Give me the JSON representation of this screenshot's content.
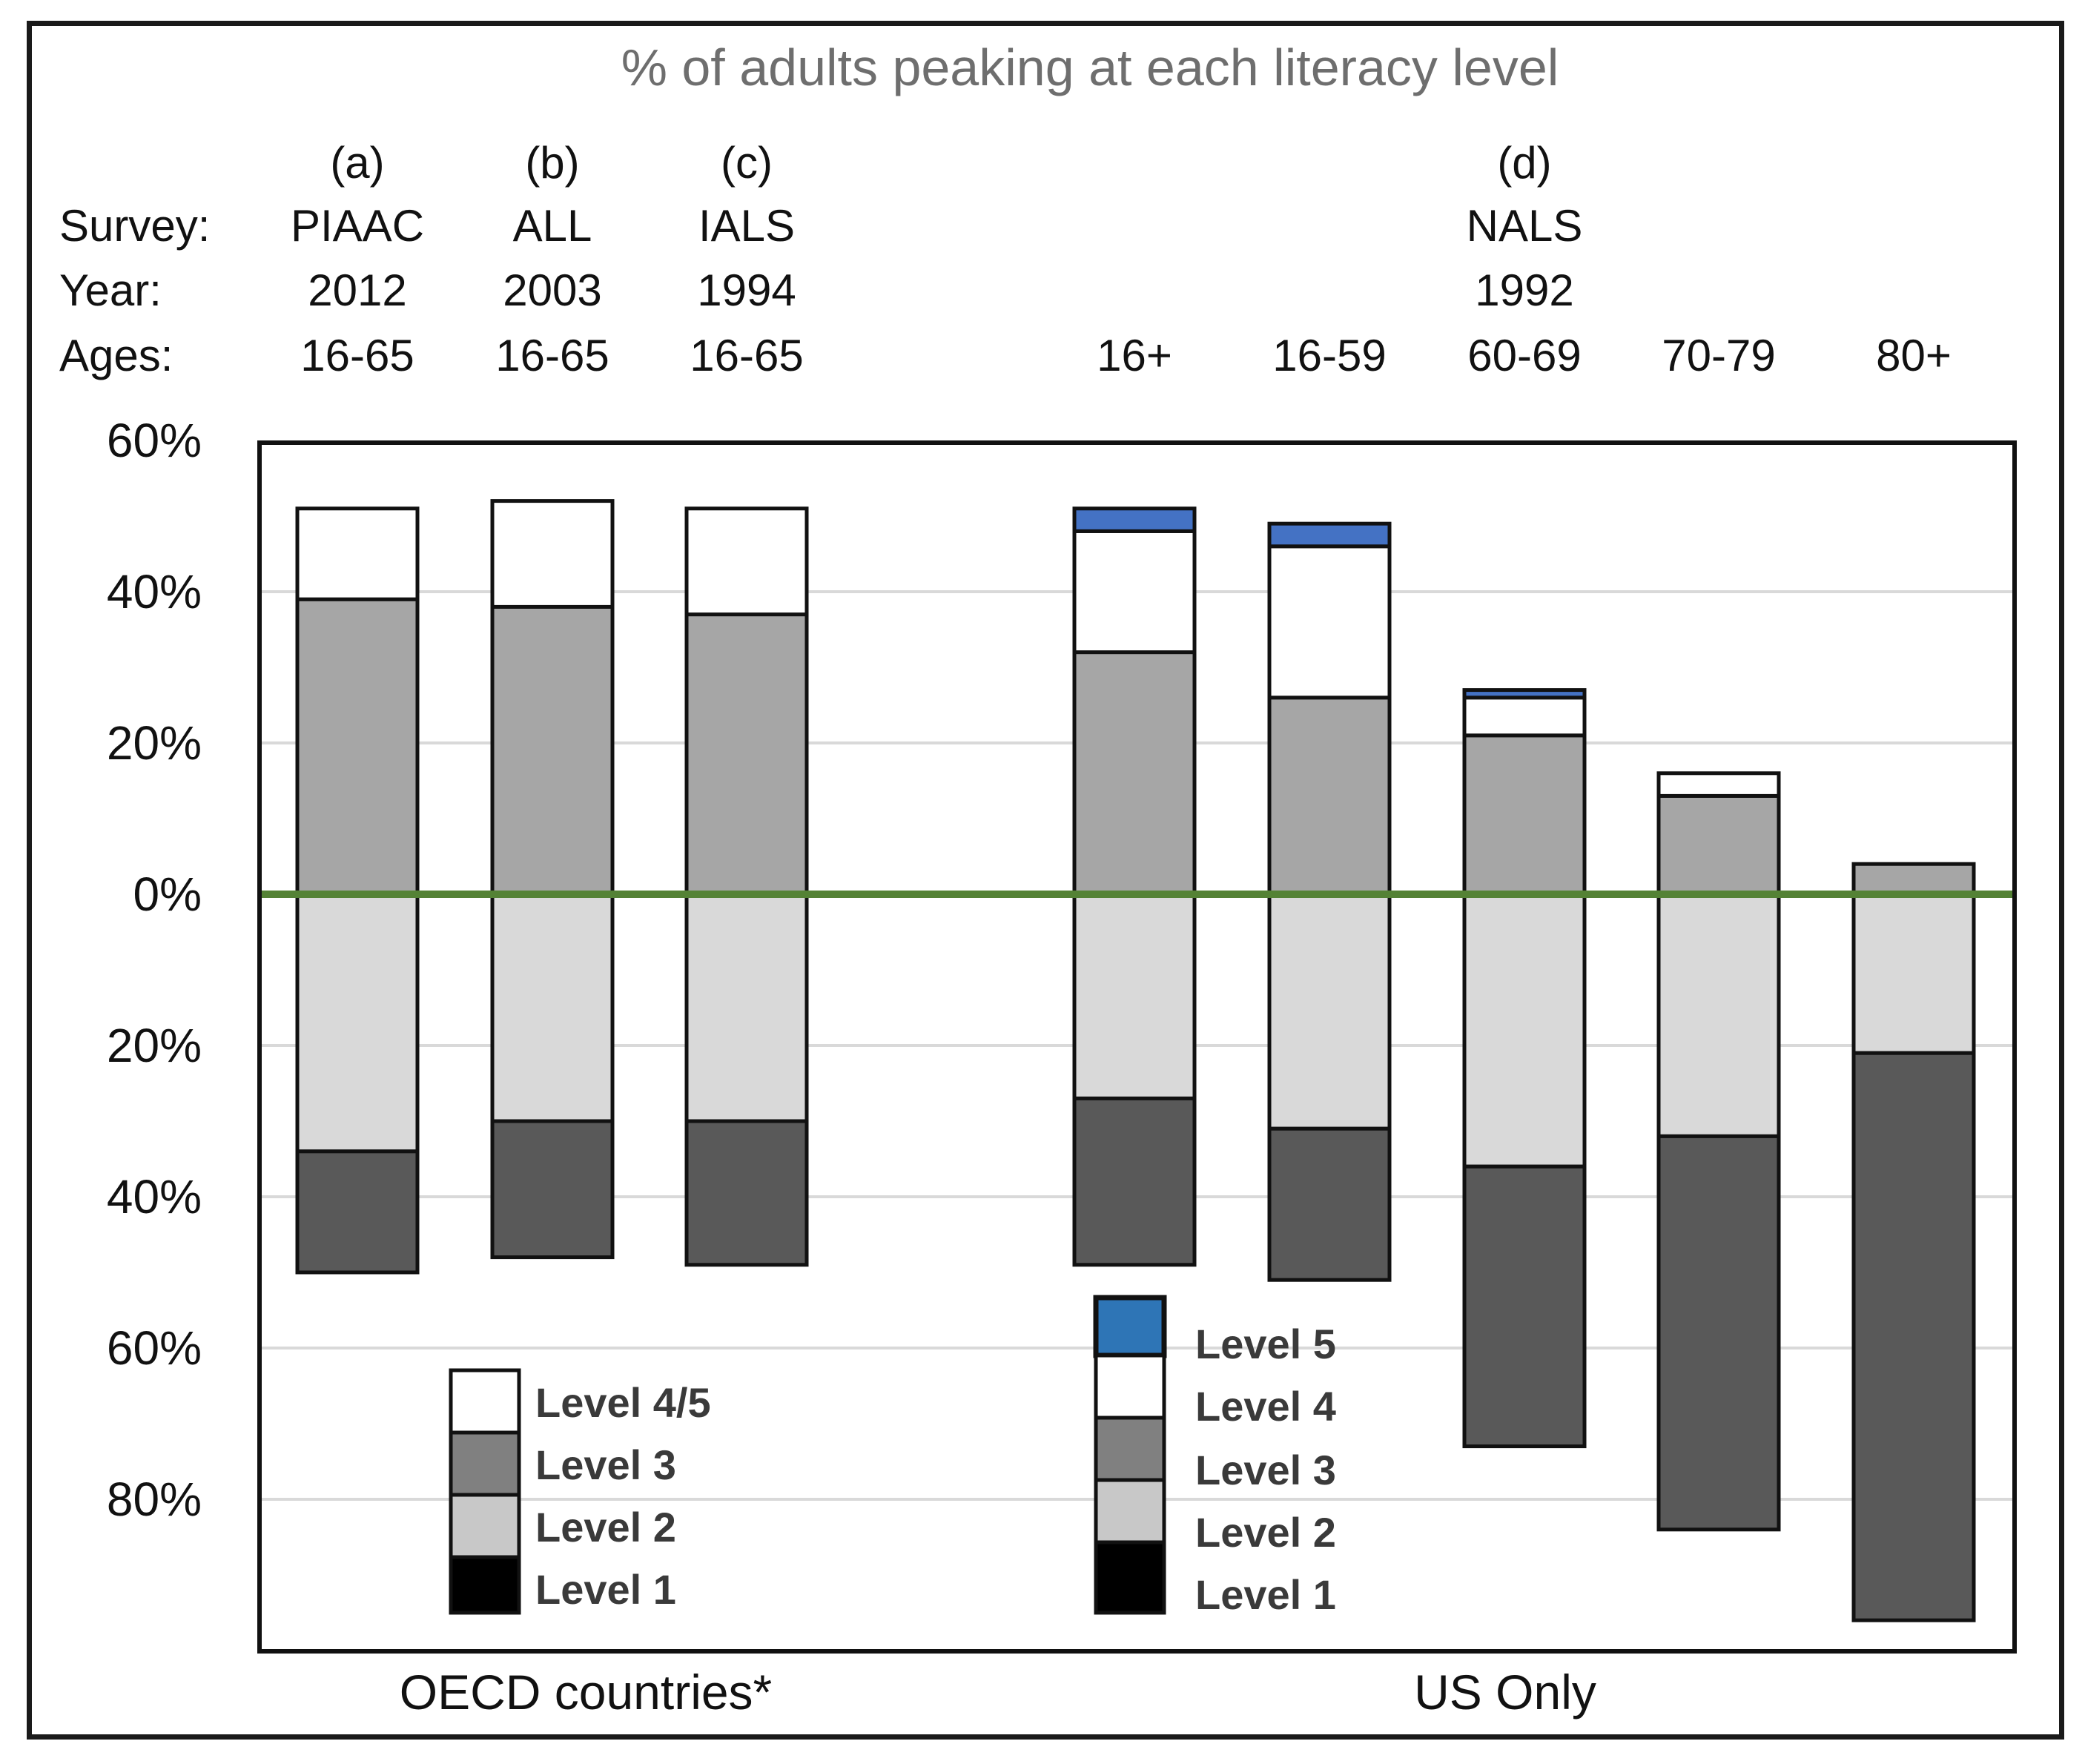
{
  "colors": {
    "level5": "#4472c4",
    "level45": "#ffffff",
    "level3_pos": "#a6a6a6",
    "level2_neg": "#d9d9d9",
    "level1_neg": "#595959",
    "zero_line": "#548235",
    "gridline": "#d9d9d9",
    "legend_level3": "#808080",
    "legend_level2": "#c8c8c8",
    "legend_level1": "#000000",
    "legend_level5": "#2e75b6"
  },
  "header": {
    "row_labels": [
      "Survey:",
      "Year:",
      "Ages:"
    ]
  },
  "chart_data": {
    "type": "bar",
    "stacked": "diverging",
    "title": "% of adults peaking at each literacy level",
    "ylim": [
      -100,
      60
    ],
    "yticks": [
      60,
      40,
      20,
      0,
      -20,
      -40,
      -60,
      -80
    ],
    "ytick_labels": [
      "60%",
      "40%",
      "20%",
      "0%",
      "20%",
      "40%",
      "60%",
      "80%"
    ],
    "grid": true,
    "groups": [
      "OECD  countries*",
      "US Only"
    ],
    "bars": [
      {
        "letter": "(a)",
        "survey": "PIAAC",
        "year": "2012",
        "ages": "16-65",
        "group": "OECD  countries*",
        "level5": 0,
        "level45": 12,
        "level3": 39,
        "level2": 34,
        "level1": 16
      },
      {
        "letter": "(b)",
        "survey": "ALL",
        "year": "2003",
        "ages": "16-65",
        "group": "OECD  countries*",
        "level5": 0,
        "level45": 14,
        "level3": 38,
        "level2": 30,
        "level1": 18
      },
      {
        "letter": "(c)",
        "survey": "IALS",
        "year": "1994",
        "ages": "16-65",
        "group": "OECD  countries*",
        "level5": 0,
        "level45": 14,
        "level3": 37,
        "level2": 30,
        "level1": 19
      },
      {
        "letter": "",
        "survey": "",
        "year": "",
        "ages": "16+",
        "group": "US Only",
        "level5": 3,
        "level45": 16,
        "level3": 32,
        "level2": 27,
        "level1": 22
      },
      {
        "letter": "",
        "survey": "",
        "year": "",
        "ages": "16-59",
        "group": "US Only",
        "level5": 3,
        "level45": 20,
        "level3": 26,
        "level2": 31,
        "level1": 20
      },
      {
        "letter": "(d)",
        "survey": "NALS",
        "year": "1992",
        "ages": "60-69",
        "group": "US Only",
        "level5": 1,
        "level45": 5,
        "level3": 21,
        "level2": 36,
        "level1": 37
      },
      {
        "letter": "",
        "survey": "",
        "year": "",
        "ages": "70-79",
        "group": "US Only",
        "level5": 0,
        "level45": 3,
        "level3": 13,
        "level2": 32,
        "level1": 52
      },
      {
        "letter": "",
        "survey": "",
        "year": "",
        "ages": "80+",
        "group": "US Only",
        "level5": 0,
        "level45": 0,
        "level3": 4,
        "level2": 21,
        "level1": 75
      }
    ],
    "legends": [
      {
        "items": [
          "Level 4/5",
          "Level 3",
          "Level 2",
          "Level 1"
        ]
      },
      {
        "items": [
          "Level 5",
          "Level 4",
          "Level 3",
          "Level 2",
          "Level 1"
        ]
      }
    ]
  }
}
